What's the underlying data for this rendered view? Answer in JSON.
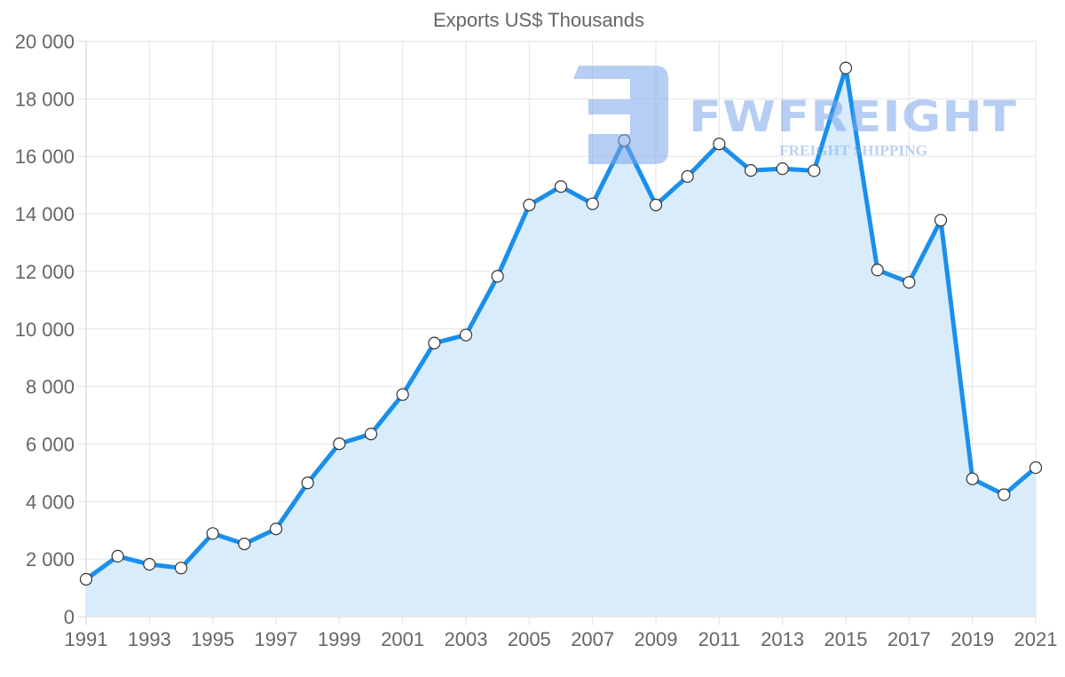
{
  "chart_data": {
    "type": "area",
    "title": "Exports US$ Thousands",
    "xlabel": "",
    "ylabel": "",
    "ylim": [
      0,
      20000
    ],
    "yticks": [
      0,
      2000,
      4000,
      6000,
      8000,
      10000,
      12000,
      14000,
      16000,
      18000,
      20000
    ],
    "ytick_labels": [
      "0",
      "2 000",
      "4 000",
      "6 000",
      "8 000",
      "10 000",
      "12 000",
      "14 000",
      "16 000",
      "18 000",
      "20 000"
    ],
    "xtick_labels": [
      "1991",
      "1993",
      "1995",
      "1997",
      "1999",
      "2001",
      "2003",
      "2005",
      "2007",
      "2009",
      "2011",
      "2013",
      "2015",
      "2017",
      "2019",
      "2021"
    ],
    "grid": true,
    "legend": null,
    "categories": [
      1991,
      1992,
      1993,
      1994,
      1995,
      1996,
      1997,
      1998,
      1999,
      2000,
      2001,
      2002,
      2003,
      2004,
      2005,
      2006,
      2007,
      2008,
      2009,
      2010,
      2011,
      2012,
      2013,
      2014,
      2015,
      2016,
      2017,
      2018,
      2019,
      2020,
      2021
    ],
    "series": [
      {
        "name": "Exports US$ Thousands",
        "values": [
          1300,
          2100,
          1820,
          1690,
          2890,
          2530,
          3050,
          4650,
          6010,
          6350,
          7720,
          9510,
          9790,
          11830,
          14310,
          14950,
          14350,
          16550,
          14310,
          15300,
          16430,
          15510,
          15570,
          15500,
          19070,
          12050,
          11620,
          13780,
          4790,
          4240,
          5180
        ]
      }
    ]
  },
  "watermark": {
    "brand": "FWFREIGHT",
    "tagline": "FREIGHT SHIPPING"
  },
  "colors": {
    "line": "#1a8fec",
    "fill": "#d6ebfc",
    "point_fill": "#ffffff",
    "point_stroke": "#333333",
    "watermark": "#7aa6ea"
  }
}
